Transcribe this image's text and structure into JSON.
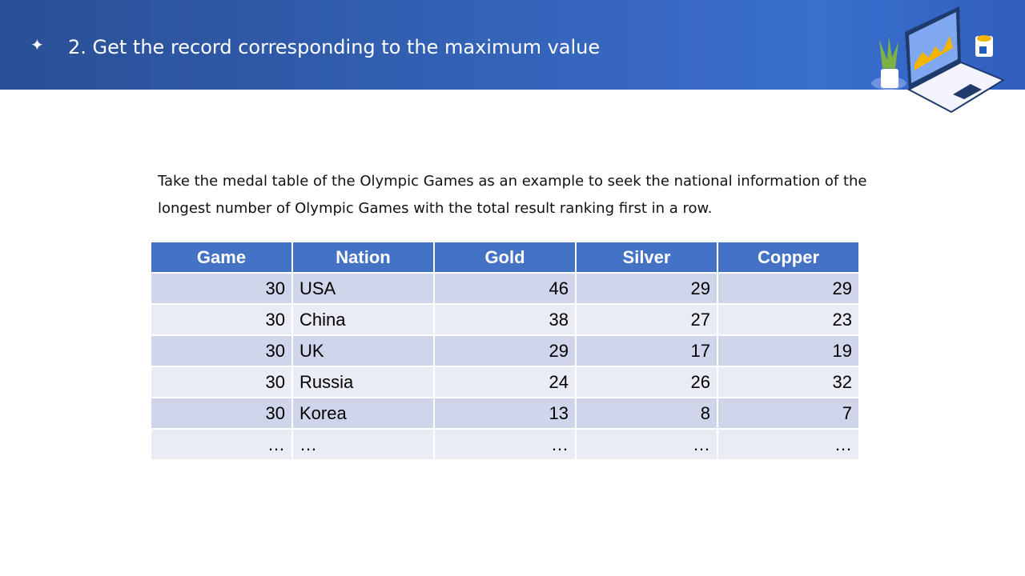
{
  "header": {
    "title": "2. Get the record corresponding to the maximum value",
    "icon": "sparkle-icon"
  },
  "description": "Take the medal table of the Olympic Games as an example to seek the national information of the longest number of Olympic Games with the total result ranking first in a row.",
  "table": {
    "columns": [
      "Game",
      "Nation",
      "Gold",
      "Silver",
      "Copper"
    ],
    "rows": [
      [
        "30",
        "USA",
        "46",
        "29",
        "29"
      ],
      [
        "30",
        "China",
        "38",
        "27",
        "23"
      ],
      [
        "30",
        "UK",
        "29",
        "17",
        "19"
      ],
      [
        "30",
        "Russia",
        "24",
        "26",
        "32"
      ],
      [
        "30",
        "Korea",
        "13",
        "8",
        "7"
      ],
      [
        "…",
        "…",
        "…",
        "…",
        "…"
      ]
    ]
  },
  "colors": {
    "header_bg": "#4472c4",
    "row_odd": "#cfd5ea",
    "row_even": "#e9ebf5"
  }
}
